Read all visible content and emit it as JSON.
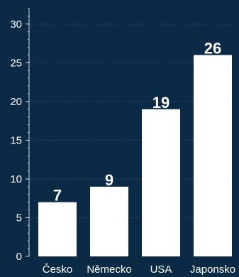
{
  "chart_data": {
    "type": "bar",
    "categories": [
      "Česko",
      "Německo",
      "USA",
      "Japonsko"
    ],
    "values": [
      7,
      9,
      19,
      26
    ],
    "data_labels": [
      "7",
      "9",
      "19",
      "26"
    ],
    "title": "",
    "xlabel": "",
    "ylabel": "",
    "ylim": [
      0,
      32
    ],
    "yticks": [
      0,
      5,
      10,
      15,
      20,
      25,
      30
    ],
    "ytick_labels": [
      "0",
      "5",
      "10",
      "15",
      "20",
      "25",
      "30"
    ],
    "grid": true,
    "legend": "none",
    "colors": {
      "background": "#0b2a45",
      "bar": "#ffffff",
      "text": "#ffffff",
      "grid": "#2a4d6b",
      "axis": "#c9d4df"
    }
  }
}
